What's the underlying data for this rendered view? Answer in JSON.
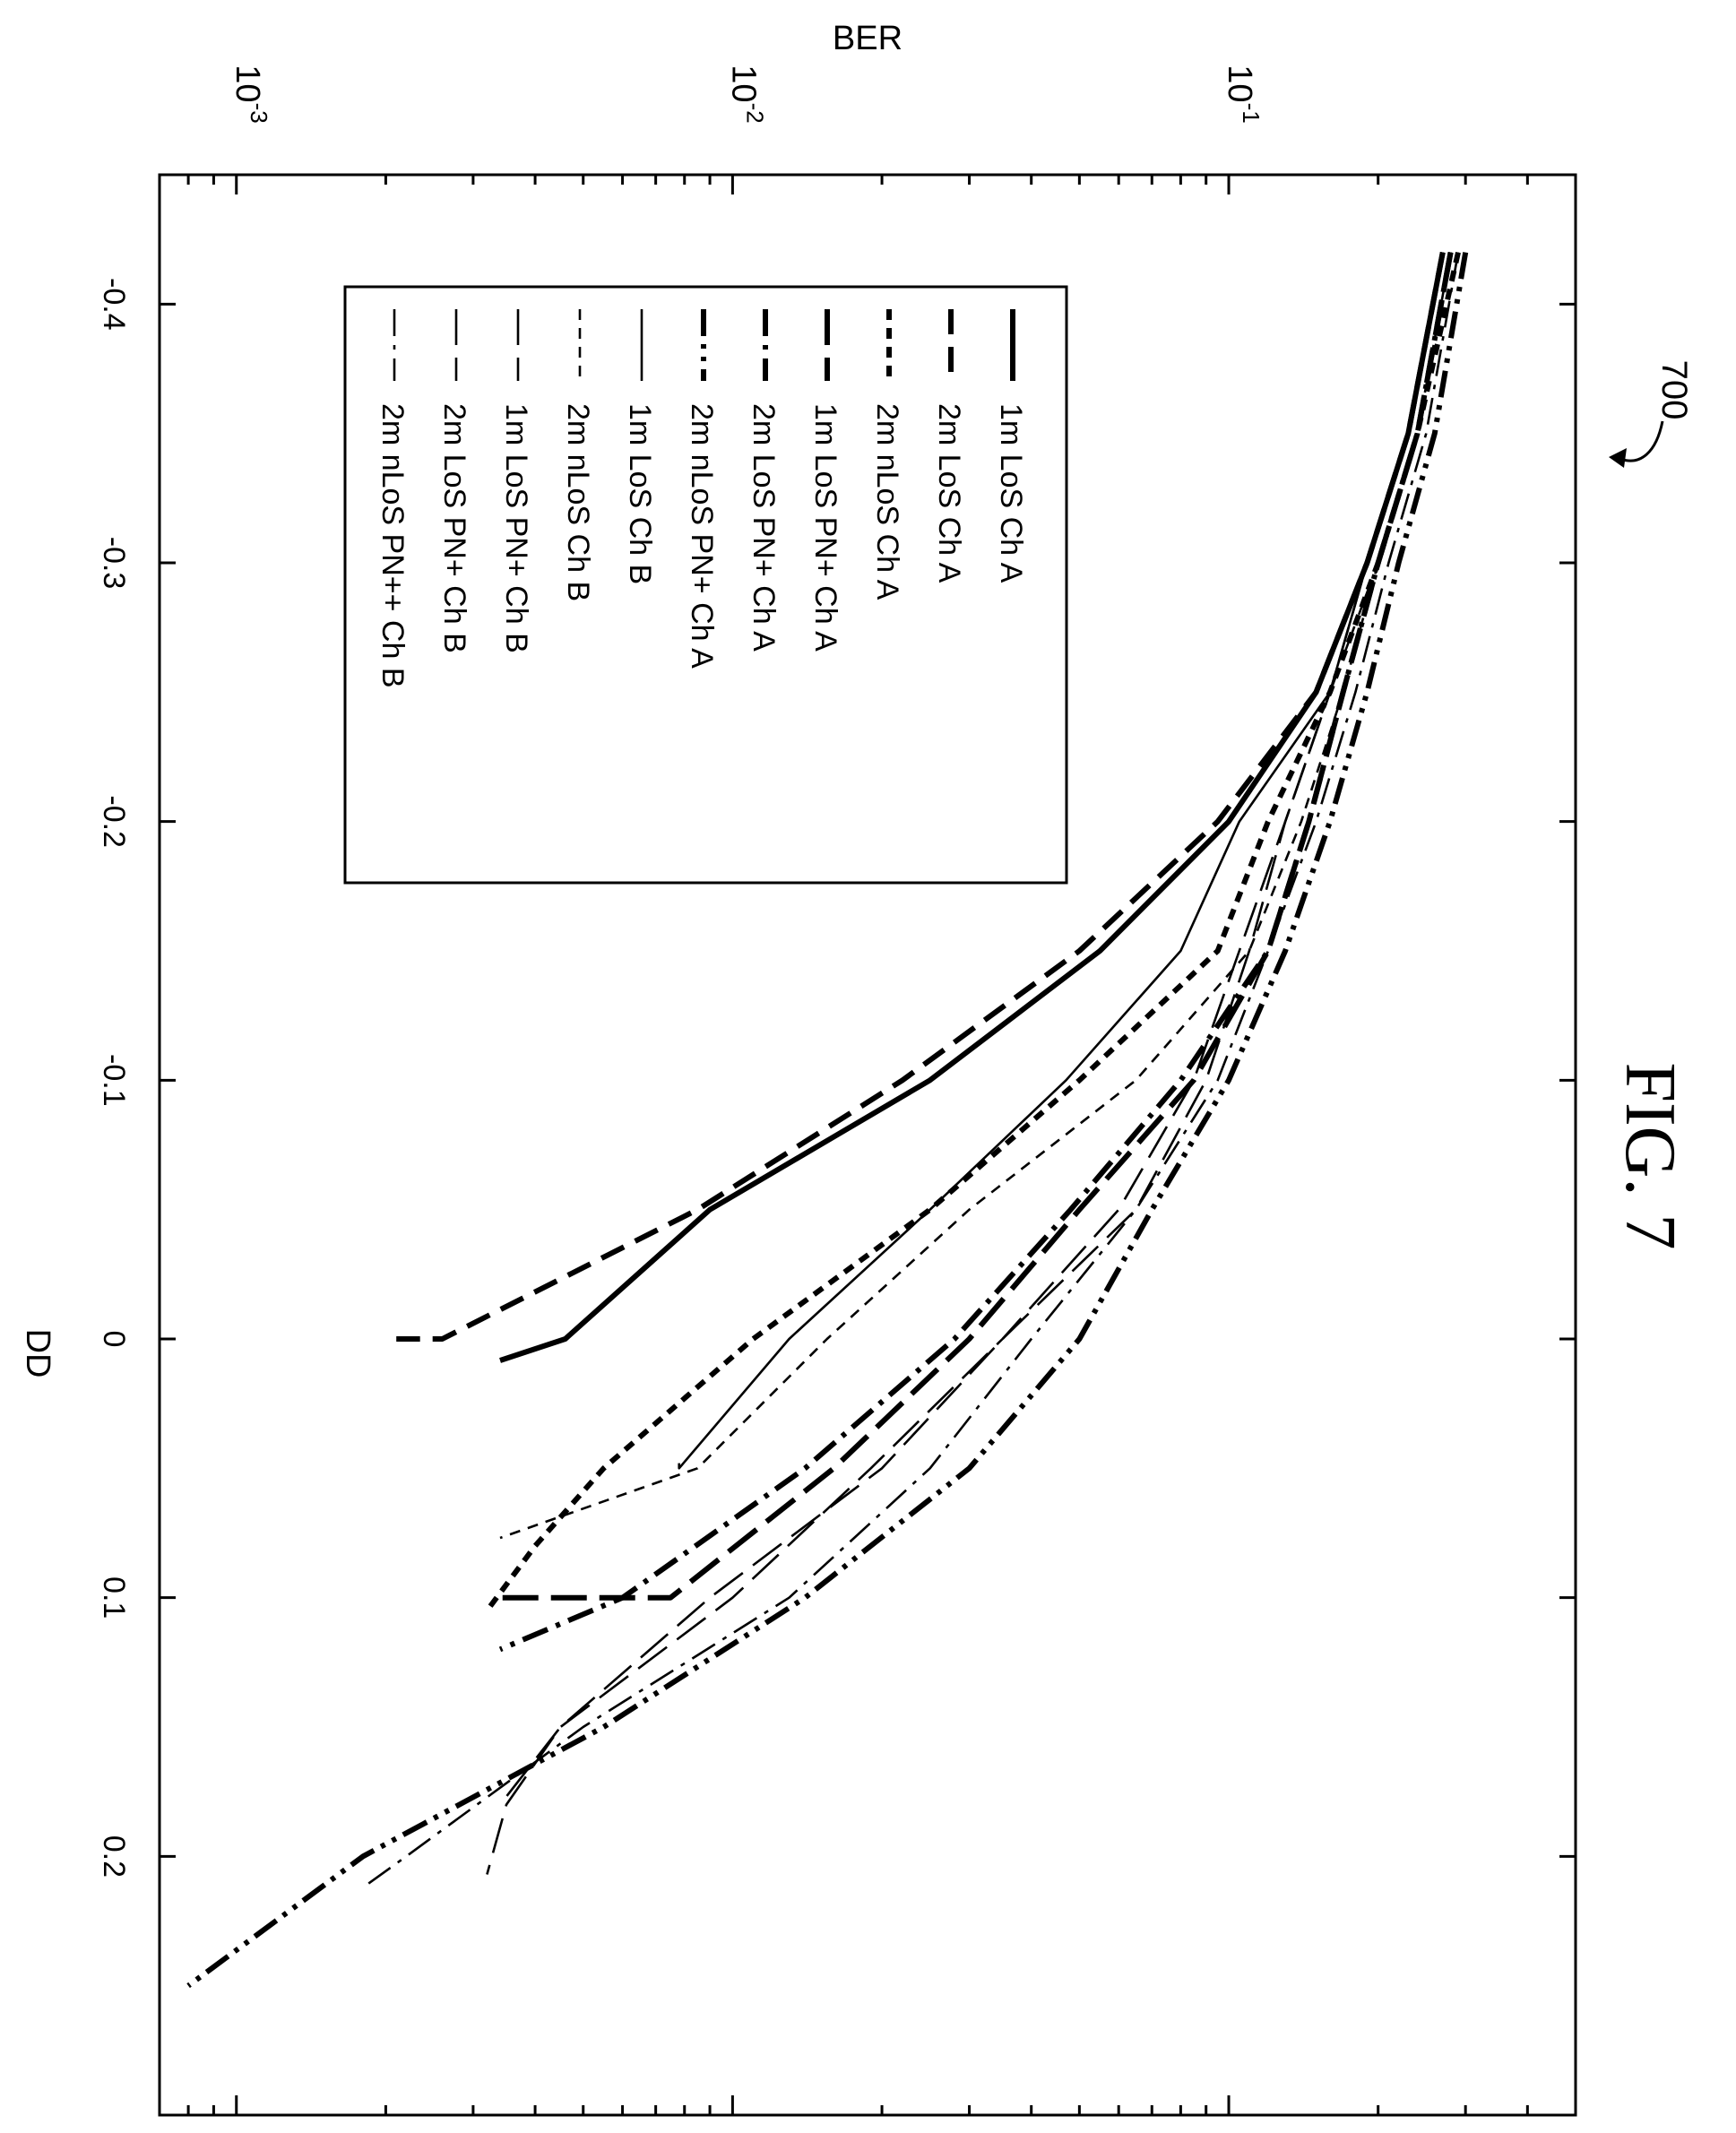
{
  "figure": {
    "caption": "FIG. 7",
    "ref_number": "700"
  },
  "chart_data": {
    "type": "line",
    "title": "",
    "xlabel": "DD",
    "ylabel": "BER",
    "xlim": [
      -0.45,
      0.3
    ],
    "ylim": [
      0.0007,
      0.5
    ],
    "yscale": "log",
    "grid": false,
    "legend_position": "upper-left",
    "x_ticks": [
      {
        "value": -0.4,
        "label": "-0.4"
      },
      {
        "value": -0.3,
        "label": "-0.3"
      },
      {
        "value": -0.2,
        "label": "-0.2"
      },
      {
        "value": -0.1,
        "label": "-0.1"
      },
      {
        "value": 0,
        "label": "0"
      },
      {
        "value": 0.1,
        "label": "0.1"
      },
      {
        "value": 0.2,
        "label": "0.2"
      }
    ],
    "y_ticks": [
      {
        "value": 0.001,
        "base": "10",
        "exp": "-3"
      },
      {
        "value": 0.01,
        "base": "10",
        "exp": "-2"
      },
      {
        "value": 0.1,
        "base": "10",
        "exp": "-1"
      }
    ],
    "series": [
      {
        "name": "1m LoS Ch A",
        "style": "solid",
        "weight": "heavy",
        "points": [
          [
            -0.42,
            0.27
          ],
          [
            -0.35,
            0.23
          ],
          [
            -0.3,
            0.19
          ],
          [
            -0.25,
            0.15
          ],
          [
            -0.2,
            0.1
          ],
          [
            -0.15,
            0.055
          ],
          [
            -0.1,
            0.025
          ],
          [
            -0.05,
            0.009
          ],
          [
            0.0,
            0.0046
          ],
          [
            0.0083,
            0.0034
          ]
        ]
      },
      {
        "name": "2m LoS Ch A",
        "style": "dash",
        "weight": "heavy",
        "points": [
          [
            -0.42,
            0.27
          ],
          [
            -0.35,
            0.23
          ],
          [
            -0.3,
            0.19
          ],
          [
            -0.25,
            0.15
          ],
          [
            -0.2,
            0.095
          ],
          [
            -0.15,
            0.05
          ],
          [
            -0.1,
            0.022
          ],
          [
            -0.05,
            0.0085
          ],
          [
            0.0,
            0.0026
          ],
          [
            0.0,
            0.0021
          ]
        ]
      },
      {
        "name": "2m nLoS Ch A",
        "style": "shortdash",
        "weight": "heavy",
        "points": [
          [
            -0.42,
            0.29
          ],
          [
            -0.35,
            0.24
          ],
          [
            -0.3,
            0.2
          ],
          [
            -0.25,
            0.16
          ],
          [
            -0.2,
            0.12
          ],
          [
            -0.15,
            0.095
          ],
          [
            -0.1,
            0.05
          ],
          [
            -0.05,
            0.025
          ],
          [
            0.0,
            0.011
          ],
          [
            0.05,
            0.0055
          ],
          [
            0.08,
            0.004
          ],
          [
            0.105,
            0.0032
          ]
        ]
      },
      {
        "name": "1m LoS PN+ Ch A",
        "style": "longdash",
        "weight": "heavy",
        "points": [
          [
            -0.42,
            0.28
          ],
          [
            -0.35,
            0.24
          ],
          [
            -0.3,
            0.2
          ],
          [
            -0.25,
            0.17
          ],
          [
            -0.2,
            0.145
          ],
          [
            -0.15,
            0.12
          ],
          [
            -0.1,
            0.085
          ],
          [
            -0.05,
            0.05
          ],
          [
            0.0,
            0.03
          ],
          [
            0.05,
            0.016
          ],
          [
            0.1,
            0.0075
          ],
          [
            0.1,
            0.0034
          ]
        ]
      },
      {
        "name": "2m LoS PN+ Ch A",
        "style": "dashdot",
        "weight": "heavy",
        "points": [
          [
            -0.42,
            0.28
          ],
          [
            -0.35,
            0.24
          ],
          [
            -0.3,
            0.2
          ],
          [
            -0.25,
            0.17
          ],
          [
            -0.2,
            0.145
          ],
          [
            -0.15,
            0.12
          ],
          [
            -0.1,
            0.08
          ],
          [
            -0.05,
            0.048
          ],
          [
            0.0,
            0.028
          ],
          [
            0.05,
            0.014
          ],
          [
            0.1,
            0.006
          ],
          [
            0.12,
            0.0034
          ]
        ]
      },
      {
        "name": "2m nLoS PN+ Ch A",
        "style": "dashdotdot",
        "weight": "heavy",
        "points": [
          [
            -0.42,
            0.3
          ],
          [
            -0.35,
            0.26
          ],
          [
            -0.3,
            0.22
          ],
          [
            -0.25,
            0.19
          ],
          [
            -0.2,
            0.16
          ],
          [
            -0.15,
            0.13
          ],
          [
            -0.1,
            0.1
          ],
          [
            -0.05,
            0.07
          ],
          [
            0.0,
            0.05
          ],
          [
            0.05,
            0.03
          ],
          [
            0.1,
            0.014
          ],
          [
            0.15,
            0.0055
          ],
          [
            0.2,
            0.0018
          ],
          [
            0.25,
            0.0008
          ]
        ]
      },
      {
        "name": "1m LoS Ch B",
        "style": "solid",
        "weight": "light",
        "points": [
          [
            -0.42,
            0.27
          ],
          [
            -0.35,
            0.23
          ],
          [
            -0.3,
            0.19
          ],
          [
            -0.25,
            0.16
          ],
          [
            -0.2,
            0.105
          ],
          [
            -0.15,
            0.08
          ],
          [
            -0.1,
            0.047
          ],
          [
            -0.05,
            0.025
          ],
          [
            0.0,
            0.013
          ],
          [
            0.05,
            0.0078
          ],
          [
            0.048,
            0.0078
          ]
        ]
      },
      {
        "name": "2m nLoS Ch B",
        "style": "shortdash",
        "weight": "light",
        "points": [
          [
            -0.42,
            0.28
          ],
          [
            -0.35,
            0.24
          ],
          [
            -0.3,
            0.2
          ],
          [
            -0.25,
            0.17
          ],
          [
            -0.2,
            0.14
          ],
          [
            -0.15,
            0.11
          ],
          [
            -0.1,
            0.065
          ],
          [
            -0.05,
            0.03
          ],
          [
            0.0,
            0.0155
          ],
          [
            0.05,
            0.0085
          ],
          [
            0.0769,
            0.0034
          ]
        ]
      },
      {
        "name": "1m LoS PN+ Ch B",
        "style": "longdash",
        "weight": "light",
        "points": [
          [
            -0.42,
            0.28
          ],
          [
            -0.35,
            0.24
          ],
          [
            -0.3,
            0.2
          ],
          [
            -0.25,
            0.16
          ],
          [
            -0.2,
            0.13
          ],
          [
            -0.15,
            0.11
          ],
          [
            -0.1,
            0.09
          ],
          [
            -0.05,
            0.065
          ],
          [
            0.0,
            0.035
          ],
          [
            0.05,
            0.02
          ],
          [
            0.1,
            0.009
          ],
          [
            0.15,
            0.0045
          ],
          [
            0.18,
            0.0034
          ]
        ]
      },
      {
        "name": "2m LoS PN+ Ch B",
        "style": "longdash",
        "weight": "light",
        "points": [
          [
            -0.42,
            0.27
          ],
          [
            -0.35,
            0.23
          ],
          [
            -0.3,
            0.19
          ],
          [
            -0.25,
            0.16
          ],
          [
            -0.2,
            0.13
          ],
          [
            -0.15,
            0.105
          ],
          [
            -0.1,
            0.085
          ],
          [
            -0.05,
            0.06
          ],
          [
            0.0,
            0.035
          ],
          [
            0.05,
            0.019
          ],
          [
            0.1,
            0.01
          ],
          [
            0.15,
            0.0045
          ],
          [
            0.18,
            0.0035
          ],
          [
            0.207,
            0.0032
          ]
        ]
      },
      {
        "name": "2m nLoS PN++ Ch B",
        "style": "dashdot",
        "weight": "light",
        "points": [
          [
            -0.42,
            0.29
          ],
          [
            -0.35,
            0.25
          ],
          [
            -0.3,
            0.21
          ],
          [
            -0.25,
            0.18
          ],
          [
            -0.2,
            0.15
          ],
          [
            -0.15,
            0.12
          ],
          [
            -0.1,
            0.095
          ],
          [
            -0.05,
            0.065
          ],
          [
            0.0,
            0.04
          ],
          [
            0.05,
            0.025
          ],
          [
            0.1,
            0.013
          ],
          [
            0.15,
            0.005
          ],
          [
            0.2,
            0.0022
          ],
          [
            0.212,
            0.0018
          ]
        ]
      }
    ]
  }
}
